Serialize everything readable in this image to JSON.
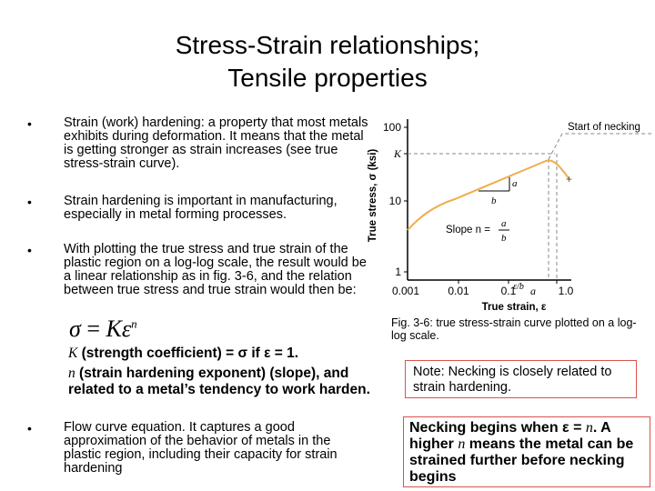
{
  "slide": {
    "title_line1": "Stress-Strain relationships;",
    "title_line2": "Tensile properties"
  },
  "bullets": [
    {
      "marker": "•",
      "text": "Strain (work) hardening: a property that most metals exhibits during deformation. It means that the metal is getting stronger as strain increases (see true stress-strain curve)."
    },
    {
      "marker": "•",
      "text": "Strain hardening is important in manufacturing, especially in metal forming processes."
    },
    {
      "marker": "•",
      "text": "With plotting the true stress and true strain of the plastic region on a log-log scale, the result would be a linear relationship as in fig. 3-6, and the relation between true stress and true strain would then be:"
    },
    {
      "marker": "•",
      "text": "Flow curve equation. It captures a good approximation of the behavior of metals in the plastic region, including their capacity for strain hardening"
    }
  ],
  "formula": {
    "lhs": "σ",
    "eq": " = ",
    "rhs": "Kε",
    "exp": "n"
  },
  "coefficients": {
    "k_symbol": "K",
    "k_text": " (strength coefficient) = σ if ε = 1.",
    "n_symbol": "n",
    "n_text": " (strain hardening exponent) (slope), and related to a metal’s tendency to work harden."
  },
  "figure": {
    "caption": "Fig. 3-6: true stress-strain curve plotted on a log-log scale.",
    "ylabel": "True stress, σ (ksi)",
    "xlabel": "True strain, ε",
    "y_ticks": [
      "100",
      "K",
      "10",
      "1"
    ],
    "x_ticks": [
      "0.001",
      "0.01",
      "0.1",
      "a",
      "1.0"
    ],
    "label_necking": "Start of necking",
    "label_a": "a",
    "label_b": "b",
    "label_slope": "Slope n =",
    "label_slope_num": "a",
    "label_slope_den": "b",
    "label_eb": "ε/b",
    "colors": {
      "curve": "#f0ad4e",
      "dash": "#888888"
    }
  },
  "notes": {
    "note1": "Note: Necking is closely related to strain hardening.",
    "note2_pre": "Necking begins when ε = ",
    "note2_n1": "n",
    "note2_mid": ". A higher ",
    "note2_n2": "n",
    "note2_post": " means the metal can be strained further before necking begins"
  }
}
